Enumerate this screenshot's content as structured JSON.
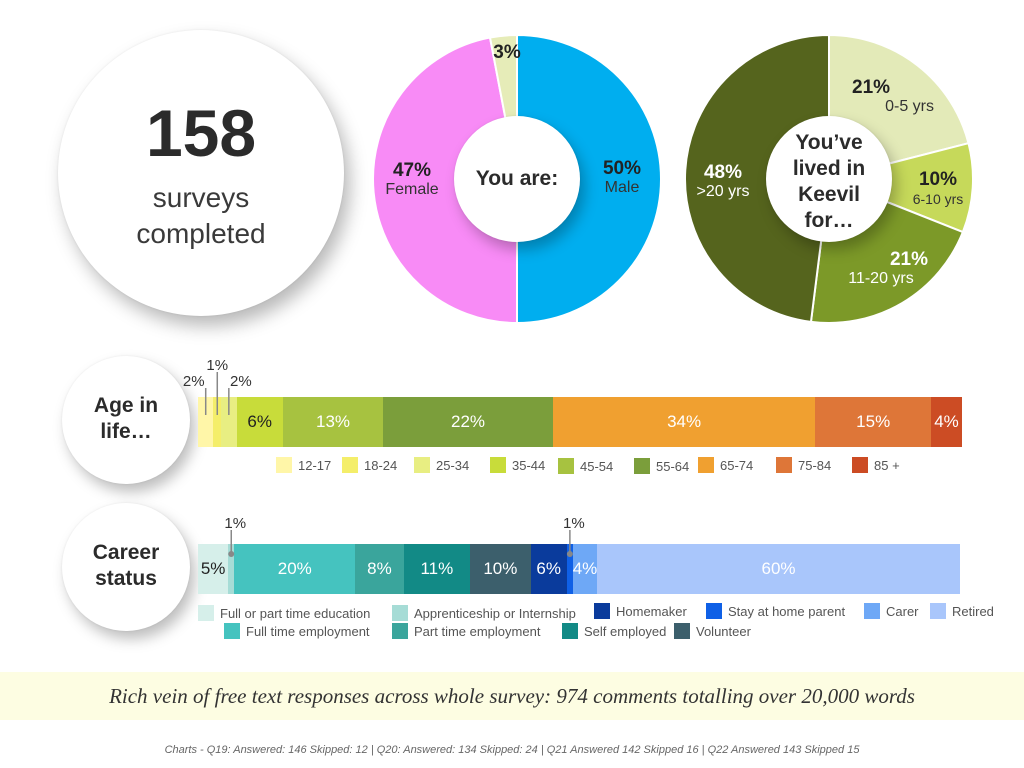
{
  "summary": {
    "count": "158",
    "label_line1": "surveys",
    "label_line2": "completed"
  },
  "chart_data": [
    {
      "type": "pie",
      "center_label": "You are:",
      "slices": [
        {
          "label": "Male",
          "value": 50,
          "value_label": "50%",
          "color": "#00aeef"
        },
        {
          "label": "Female",
          "value": 47,
          "value_label": "47%",
          "color": "#f88bf6"
        },
        {
          "label": "",
          "value": 3,
          "value_label": "3%",
          "color": "#e6ecb8"
        }
      ]
    },
    {
      "type": "pie",
      "center_label": "You’ve lived in Keevil for…",
      "center_lines": [
        "You’ve",
        "lived in",
        "Keevil",
        "for…"
      ],
      "slices": [
        {
          "label": "0-5 yrs",
          "value": 21,
          "value_label": "21%",
          "color": "#e3eab8"
        },
        {
          "label": "6-10 yrs",
          "value": 10,
          "value_label": "10%",
          "color": "#c6d95a"
        },
        {
          "label": "11-20 yrs",
          "value": 21,
          "value_label": "21%",
          "color": "#7c9928"
        },
        {
          "label": ">20 yrs",
          "value": 48,
          "value_label": "48%",
          "color": "#55641d"
        }
      ]
    },
    {
      "type": "bar",
      "orientation": "horizontal-stacked",
      "title": "Age in life…",
      "title_lines": [
        "Age in",
        "life…"
      ],
      "categories": [
        "12-17",
        "18-24",
        "25-34",
        "35-44",
        "45-54",
        "55-64",
        "65-74",
        "75-84",
        "85 +"
      ],
      "values": [
        2,
        1,
        2,
        6,
        13,
        22,
        34,
        15,
        4
      ],
      "value_labels": [
        "2%",
        "1%",
        "2%",
        "6%",
        "13%",
        "22%",
        "34%",
        "15%",
        "4%"
      ],
      "colors": [
        "#fff6a8",
        "#f4ee6a",
        "#e8ee82",
        "#c8dc3a",
        "#a7c240",
        "#7b9e3b",
        "#f0a030",
        "#de7638",
        "#cc4c24"
      ]
    },
    {
      "type": "bar",
      "orientation": "horizontal-stacked",
      "title": "Career status",
      "title_lines": [
        "Career",
        "status"
      ],
      "categories": [
        "Full or part time education",
        "Apprenticeship or Internship",
        "Full time employment",
        "Part time employment",
        "Self employed",
        "Volunteer",
        "Homemaker",
        "Stay at home parent",
        "Carer",
        "Retired"
      ],
      "values": [
        5,
        1,
        20,
        8,
        11,
        10,
        6,
        1,
        4,
        60
      ],
      "value_labels": [
        "5%",
        "1%",
        "20%",
        "8%",
        "11%",
        "10%",
        "6%",
        "1%",
        "4%",
        "60%"
      ],
      "colors": [
        "#d6efea",
        "#a6dcd6",
        "#45c3bf",
        "#3aa59c",
        "#128a86",
        "#3c5f6c",
        "#0a3b9c",
        "#0f60e6",
        "#6ea8f6",
        "#a9c6fb"
      ]
    }
  ],
  "note": "Rich vein of free text responses across whole survey: 974 comments totalling over 20,000 words",
  "footer": "Charts - Q19: Answered: 146  Skipped: 12 | Q20: Answered: 134  Skipped: 24 | Q21 Answered 142  Skipped 16 | Q22 Answered 143  Skipped 15"
}
